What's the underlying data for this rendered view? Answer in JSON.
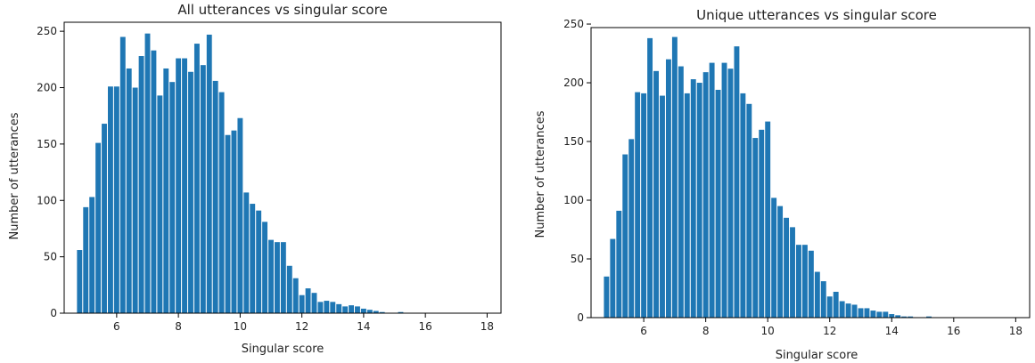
{
  "colors": {
    "bar": "#1f77b4",
    "axis": "#000000",
    "text": "#222222"
  },
  "chart_data": [
    {
      "type": "bar",
      "title": "All utterances vs singular score",
      "xlabel": "Singular score",
      "ylabel": "Number of utterances",
      "xlim": [
        4.3,
        18.45
      ],
      "ylim": [
        0,
        258
      ],
      "xticks": [
        6,
        8,
        10,
        12,
        14,
        16,
        18
      ],
      "yticks": [
        0,
        50,
        100,
        150,
        200,
        250
      ],
      "bar_width": 0.17,
      "grid": false,
      "x": [
        4.8,
        5.0,
        5.2,
        5.4,
        5.6,
        5.8,
        6.0,
        6.2,
        6.4,
        6.6,
        6.8,
        7.0,
        7.2,
        7.4,
        7.6,
        7.8,
        8.0,
        8.2,
        8.4,
        8.6,
        8.8,
        9.0,
        9.2,
        9.4,
        9.6,
        9.8,
        10.0,
        10.2,
        10.4,
        10.6,
        10.8,
        11.0,
        11.2,
        11.4,
        11.6,
        11.8,
        12.0,
        12.2,
        12.4,
        12.6,
        12.8,
        13.0,
        13.2,
        13.4,
        13.6,
        13.8,
        14.0,
        14.2,
        14.4,
        14.6,
        14.8,
        15.0,
        15.2,
        15.4,
        15.6,
        15.8,
        16.0,
        16.2,
        16.4,
        16.6,
        16.8,
        17.0,
        17.2,
        17.4,
        17.6,
        17.8,
        18.0
      ],
      "values": [
        56,
        94,
        103,
        151,
        168,
        201,
        201,
        245,
        217,
        200,
        228,
        248,
        233,
        193,
        217,
        205,
        226,
        226,
        214,
        239,
        220,
        247,
        206,
        196,
        158,
        162,
        173,
        107,
        97,
        91,
        81,
        65,
        63,
        63,
        42,
        31,
        16,
        22,
        18,
        10,
        11,
        10,
        8,
        6,
        7,
        6,
        4,
        3,
        2,
        1,
        0,
        0,
        1,
        0,
        0,
        0,
        0,
        0,
        0,
        0,
        0,
        0,
        0,
        0,
        0,
        0,
        0
      ]
    },
    {
      "type": "bar",
      "title": "Unique utterances vs singular score",
      "xlabel": "Singular score",
      "ylabel": "Number of utterances",
      "xlim": [
        4.3,
        18.45
      ],
      "ylim": [
        0,
        247
      ],
      "xticks": [
        6,
        8,
        10,
        12,
        14,
        16,
        18
      ],
      "yticks": [
        0,
        50,
        100,
        150,
        200,
        250
      ],
      "bar_width": 0.17,
      "grid": false,
      "x": [
        4.8,
        5.0,
        5.2,
        5.4,
        5.6,
        5.8,
        6.0,
        6.2,
        6.4,
        6.6,
        6.8,
        7.0,
        7.2,
        7.4,
        7.6,
        7.8,
        8.0,
        8.2,
        8.4,
        8.6,
        8.8,
        9.0,
        9.2,
        9.4,
        9.6,
        9.8,
        10.0,
        10.2,
        10.4,
        10.6,
        10.8,
        11.0,
        11.2,
        11.4,
        11.6,
        11.8,
        12.0,
        12.2,
        12.4,
        12.6,
        12.8,
        13.0,
        13.2,
        13.4,
        13.6,
        13.8,
        14.0,
        14.2,
        14.4,
        14.6,
        14.8,
        15.0,
        15.2,
        15.4,
        15.6,
        15.8,
        16.0,
        16.2,
        16.4,
        16.6,
        16.8,
        17.0,
        17.2,
        17.4,
        17.6,
        17.8,
        18.0
      ],
      "values": [
        35,
        67,
        91,
        139,
        152,
        192,
        191,
        238,
        210,
        189,
        220,
        239,
        214,
        191,
        203,
        200,
        209,
        217,
        194,
        217,
        212,
        231,
        191,
        182,
        153,
        160,
        167,
        102,
        95,
        85,
        77,
        62,
        62,
        57,
        39,
        31,
        18,
        22,
        14,
        12,
        11,
        8,
        8,
        6,
        5,
        5,
        3,
        2,
        1,
        1,
        0,
        0,
        1,
        0,
        0,
        0,
        0,
        0,
        0,
        0,
        0,
        0,
        0,
        0,
        0,
        0,
        0
      ]
    }
  ]
}
